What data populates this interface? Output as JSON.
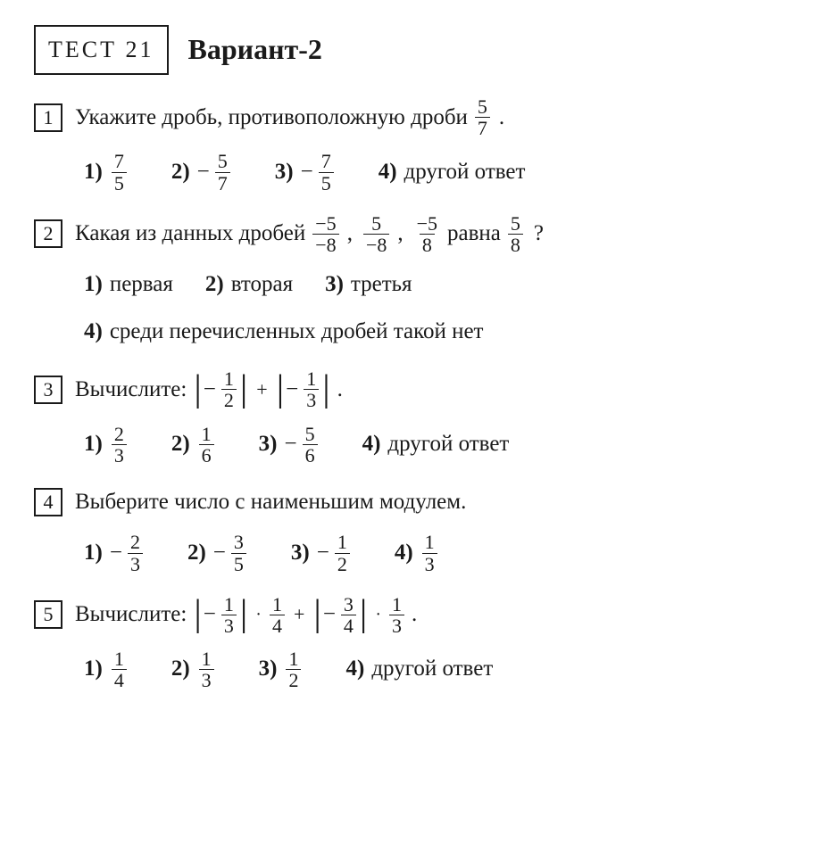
{
  "header": {
    "test_label": "ТЕСТ 21",
    "variant": "Вариант-2"
  },
  "q1": {
    "num": "1",
    "text": "Укажите дробь, противоположную дроби",
    "frac": {
      "n": "5",
      "d": "7"
    },
    "opts": {
      "l1": "1)",
      "f1": {
        "n": "7",
        "d": "5"
      },
      "l2": "2)",
      "f2": {
        "n": "5",
        "d": "7"
      },
      "l3": "3)",
      "f3": {
        "n": "7",
        "d": "5"
      },
      "l4": "4)",
      "t4": "другой ответ"
    }
  },
  "q2": {
    "num": "2",
    "text_a": "Какая из данных дробей",
    "f1": {
      "n": "−5",
      "d": "−8"
    },
    "f2": {
      "n": "5",
      "d": "−8"
    },
    "f3": {
      "n": "−5",
      "d": "8"
    },
    "text_b": "равна",
    "f4": {
      "n": "5",
      "d": "8"
    },
    "opts": {
      "l1": "1)",
      "t1": "первая",
      "l2": "2)",
      "t2": "вторая",
      "l3": "3)",
      "t3": "третья",
      "l4": "4)",
      "t4": "среди перечисленных дробей такой нет"
    }
  },
  "q3": {
    "num": "3",
    "text": "Вычислите:",
    "a1": {
      "n": "1",
      "d": "2"
    },
    "a2": {
      "n": "1",
      "d": "3"
    },
    "opts": {
      "l1": "1)",
      "f1": {
        "n": "2",
        "d": "3"
      },
      "l2": "2)",
      "f2": {
        "n": "1",
        "d": "6"
      },
      "l3": "3)",
      "f3": {
        "n": "5",
        "d": "6"
      },
      "l4": "4)",
      "t4": "другой ответ"
    }
  },
  "q4": {
    "num": "4",
    "text": "Выберите число с наименьшим модулем.",
    "opts": {
      "l1": "1)",
      "f1": {
        "n": "2",
        "d": "3"
      },
      "l2": "2)",
      "f2": {
        "n": "3",
        "d": "5"
      },
      "l3": "3)",
      "f3": {
        "n": "1",
        "d": "2"
      },
      "l4": "4)",
      "f4": {
        "n": "1",
        "d": "3"
      }
    }
  },
  "q5": {
    "num": "5",
    "text": "Вычислите:",
    "a1": {
      "n": "1",
      "d": "3"
    },
    "m1": {
      "n": "1",
      "d": "4"
    },
    "a2": {
      "n": "3",
      "d": "4"
    },
    "m2": {
      "n": "1",
      "d": "3"
    },
    "opts": {
      "l1": "1)",
      "f1": {
        "n": "1",
        "d": "4"
      },
      "l2": "2)",
      "f2": {
        "n": "1",
        "d": "3"
      },
      "l3": "3)",
      "f3": {
        "n": "1",
        "d": "2"
      },
      "l4": "4)",
      "t4": "другой ответ"
    }
  }
}
